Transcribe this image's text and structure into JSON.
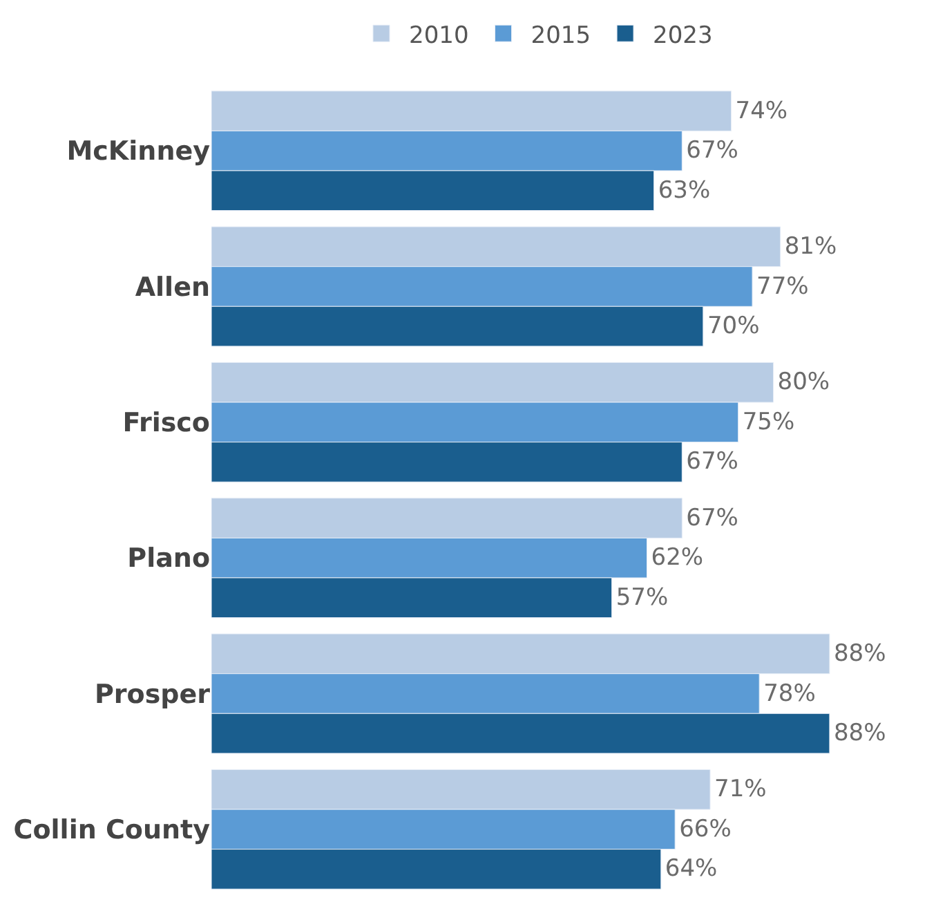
{
  "chart_data": {
    "type": "bar",
    "orientation": "horizontal",
    "categories": [
      "McKinney",
      "Allen",
      "Frisco",
      "Plano",
      "Prosper",
      "Collin County"
    ],
    "series": [
      {
        "name": "2010",
        "color": "#b8cce4",
        "values": [
          74,
          81,
          80,
          67,
          88,
          71
        ],
        "value_labels": [
          "74%",
          "81%",
          "80%",
          "67%",
          "88%",
          "71%"
        ]
      },
      {
        "name": "2015",
        "color": "#5b9bd5",
        "values": [
          67,
          77,
          75,
          62,
          78,
          66
        ],
        "value_labels": [
          "67%",
          "77%",
          "75%",
          "62%",
          "78%",
          "66%"
        ]
      },
      {
        "name": "2023",
        "color": "#1a5e8e",
        "values": [
          63,
          70,
          67,
          57,
          88,
          64
        ],
        "value_labels": [
          "63%",
          "70%",
          "67%",
          "57%",
          "88%",
          "64%"
        ]
      }
    ],
    "tick_labels": "y",
    "legend": "top"
  }
}
